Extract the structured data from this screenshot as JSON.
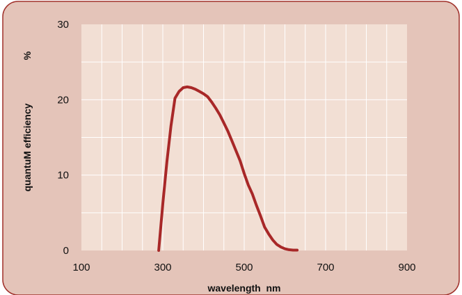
{
  "chart_data": {
    "type": "line",
    "xlabel": "wavelength  nm",
    "ylabel": "quantuM efficiency",
    "yunit": "%",
    "xlim": [
      100,
      900
    ],
    "ylim": [
      0,
      30
    ],
    "x_ticks": [
      100,
      300,
      500,
      700,
      900
    ],
    "y_ticks": [
      0,
      10,
      20,
      30
    ],
    "grid": true,
    "series": [
      {
        "x": [
          290,
          300,
          310,
          320,
          330,
          340,
          350,
          360,
          370,
          380,
          390,
          400,
          410,
          420,
          430,
          440,
          450,
          460,
          470,
          480,
          490,
          500,
          510,
          520,
          530,
          540,
          550,
          560,
          570,
          580,
          590,
          600,
          610,
          620,
          630
        ],
        "y": [
          0,
          6.2,
          11.8,
          16.5,
          20.2,
          21.1,
          21.6,
          21.7,
          21.6,
          21.4,
          21.1,
          20.8,
          20.4,
          19.7,
          18.9,
          18.0,
          16.9,
          15.8,
          14.5,
          13.2,
          11.9,
          10.2,
          8.7,
          7.5,
          6.0,
          4.6,
          3.1,
          2.2,
          1.4,
          0.8,
          0.45,
          0.22,
          0.1,
          0.05,
          0.05
        ],
        "color": "#a82828"
      }
    ]
  },
  "colors": {
    "page_background": "#ffffff",
    "frame_fill": "#e4c4b9",
    "frame_stroke": "#a0302a",
    "plot_fill": "#f2dfd4",
    "grid": "#ffffff",
    "line": "#a82828"
  }
}
